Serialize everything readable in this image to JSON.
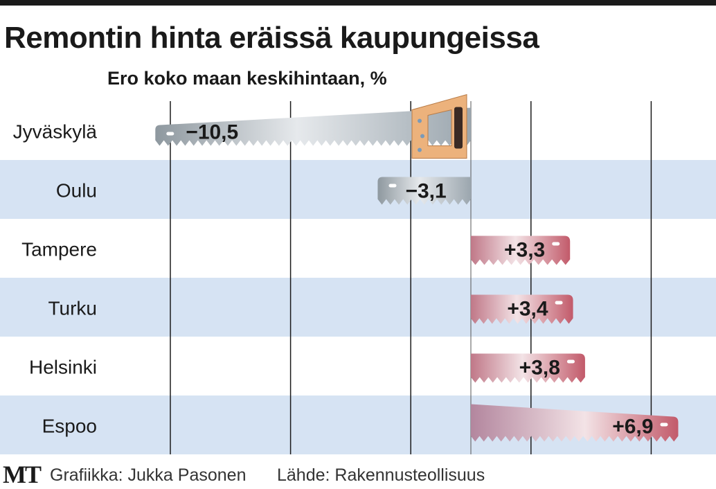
{
  "chart_data": {
    "type": "bar",
    "orientation": "horizontal",
    "title": "Remontin hinta eräissä kaupungeissa",
    "subtitle": "Ero koko maan keskihintaan, %",
    "categories": [
      "Jyväskylä",
      "Oulu",
      "Tampere",
      "Turku",
      "Helsinki",
      "Espoo"
    ],
    "values": [
      -10.5,
      -3.1,
      3.3,
      3.4,
      3.8,
      6.9
    ],
    "value_labels": [
      "−10,5",
      "−3,1",
      "+3,3",
      "+3,4",
      "+3,8",
      "+6,9"
    ],
    "xlim": [
      -13,
      8
    ],
    "gridlines_at": [
      -10,
      -6,
      -2,
      2,
      6
    ],
    "grid": true,
    "row_banding": true,
    "colors": {
      "negative_blade": "#aab4bc",
      "negative_blade_light": "#e6e9ec",
      "positive_blade": "#c9707e",
      "positive_blade_light": "#f3e3e6",
      "handle": "#ecb27c",
      "band": "#d6e3f3",
      "grid": "#1a1a1a"
    }
  },
  "footer": {
    "logo": "MT",
    "credit": "Grafiikka: Jukka Pasonen",
    "source": "Lähde: Rakennusteollisuus"
  }
}
